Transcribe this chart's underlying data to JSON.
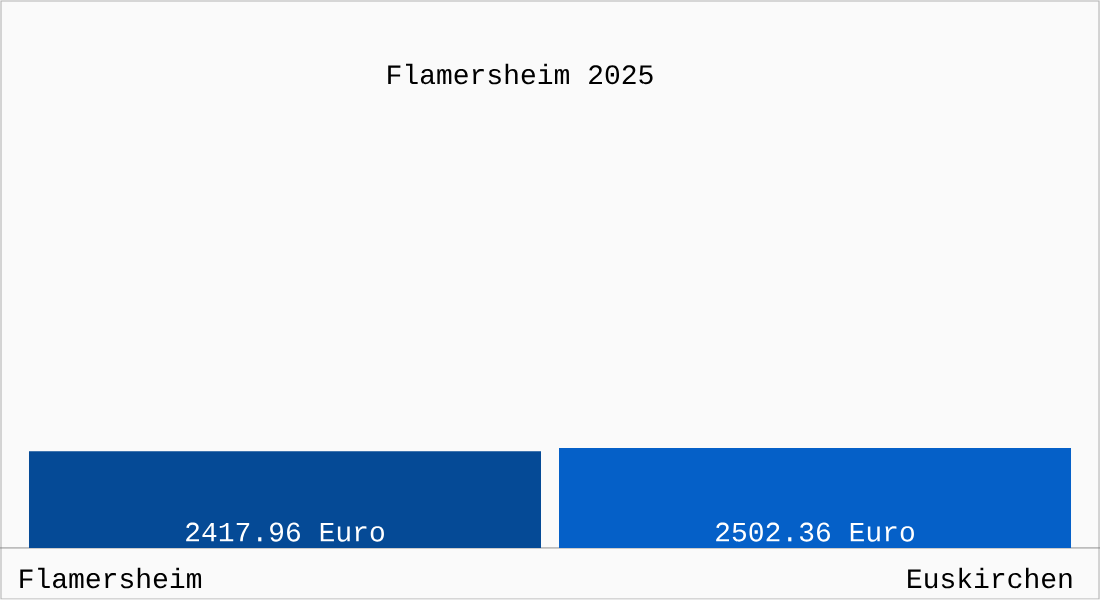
{
  "chart_data": {
    "type": "bar",
    "title": "Flamersheim 2025",
    "categories": [
      "Flamersheim",
      "Euskirchen"
    ],
    "values": [
      2417.96,
      2502.36
    ],
    "value_labels": [
      "2417.96 Euro",
      "2502.36 Euro"
    ],
    "colors": [
      "#054a96",
      "#0560c8"
    ]
  }
}
